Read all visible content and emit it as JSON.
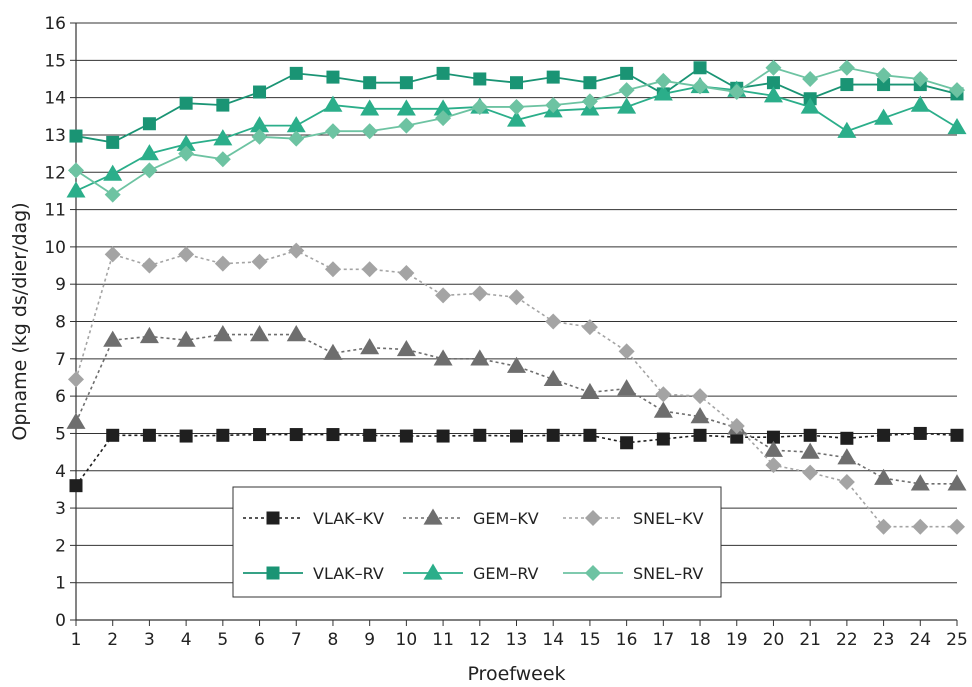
{
  "chart_data": {
    "type": "line",
    "title": "",
    "xlabel": "Proefweek",
    "ylabel": "Opname (kg ds/dier/dag)",
    "x": [
      1,
      2,
      3,
      4,
      5,
      6,
      7,
      8,
      9,
      10,
      11,
      12,
      13,
      14,
      15,
      16,
      17,
      18,
      19,
      20,
      21,
      22,
      23,
      24,
      25
    ],
    "xlim": [
      1,
      25
    ],
    "ylim": [
      0,
      16
    ],
    "yticks": [
      0,
      1,
      2,
      3,
      4,
      5,
      6,
      7,
      8,
      9,
      10,
      11,
      12,
      13,
      14,
      15,
      16
    ],
    "grid": "horizontal",
    "legend_position": "lower-center",
    "series": [
      {
        "name": "VLAK–KV",
        "color": "#1f1f1f",
        "marker": "square",
        "dash": "dotted",
        "values": [
          3.6,
          4.95,
          4.95,
          4.93,
          4.95,
          4.97,
          4.97,
          4.97,
          4.95,
          4.93,
          4.93,
          4.95,
          4.93,
          4.95,
          4.95,
          4.75,
          4.85,
          4.95,
          4.9,
          4.9,
          4.95,
          4.87,
          4.95,
          5.0,
          4.95
        ]
      },
      {
        "name": "GEM–KV",
        "color": "#6e6e6e",
        "marker": "triangle",
        "dash": "dotted",
        "values": [
          5.3,
          7.5,
          7.6,
          7.5,
          7.65,
          7.65,
          7.65,
          7.15,
          7.3,
          7.25,
          7.0,
          7.0,
          6.8,
          6.45,
          6.1,
          6.2,
          5.6,
          5.45,
          5.15,
          4.55,
          4.5,
          4.35,
          3.8,
          3.65,
          3.65
        ]
      },
      {
        "name": "SNEL–KV",
        "color": "#a4a4a4",
        "marker": "diamond",
        "dash": "dotted",
        "values": [
          6.45,
          9.8,
          9.5,
          9.8,
          9.55,
          9.6,
          9.9,
          9.4,
          9.4,
          9.3,
          8.7,
          8.75,
          8.65,
          8.0,
          7.85,
          7.2,
          6.05,
          6.0,
          5.2,
          4.15,
          3.95,
          3.7,
          2.5,
          2.5,
          2.5
        ]
      },
      {
        "name": "VLAK–RV",
        "color": "#1a9474",
        "marker": "square",
        "dash": "solid",
        "values": [
          12.97,
          12.8,
          13.3,
          13.85,
          13.8,
          14.15,
          14.65,
          14.55,
          14.4,
          14.4,
          14.65,
          14.5,
          14.4,
          14.55,
          14.4,
          14.65,
          14.1,
          14.8,
          14.25,
          14.4,
          13.97,
          14.35,
          14.35,
          14.35,
          14.1
        ]
      },
      {
        "name": "GEM–RV",
        "color": "#2bae8a",
        "marker": "triangle",
        "dash": "solid",
        "values": [
          11.5,
          11.95,
          12.5,
          12.75,
          12.9,
          13.25,
          13.25,
          13.8,
          13.7,
          13.7,
          13.7,
          13.75,
          13.4,
          13.65,
          13.7,
          13.75,
          14.1,
          14.3,
          14.2,
          14.05,
          13.75,
          13.1,
          13.45,
          13.8,
          13.2
        ]
      },
      {
        "name": "SNEL–RV",
        "color": "#6dc3a2",
        "marker": "diamond",
        "dash": "solid",
        "values": [
          12.05,
          11.4,
          12.05,
          12.5,
          12.35,
          12.95,
          12.9,
          13.1,
          13.1,
          13.25,
          13.45,
          13.75,
          13.75,
          13.8,
          13.9,
          14.2,
          14.45,
          14.3,
          14.15,
          14.8,
          14.5,
          14.8,
          14.6,
          14.5,
          14.2
        ]
      }
    ]
  }
}
